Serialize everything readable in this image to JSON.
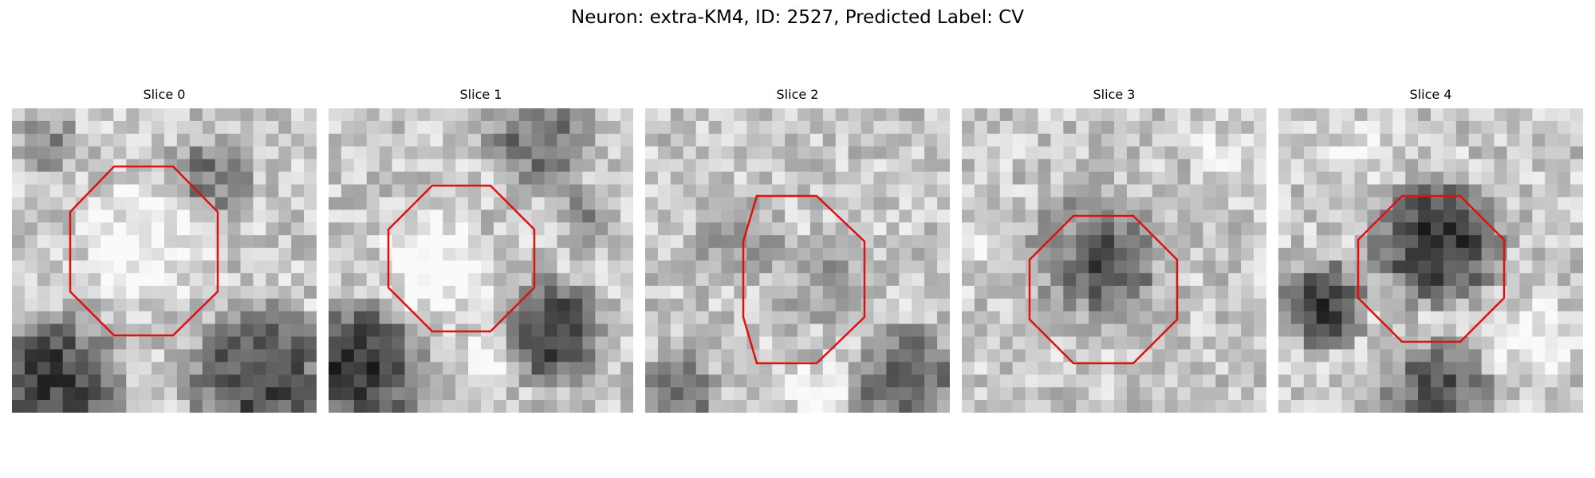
{
  "figure": {
    "title": "Neuron: extra-KM4, ID: 2527, Predicted Label: CV"
  },
  "panels": [
    {
      "title": "Slice 0"
    },
    {
      "title": "Slice 1"
    },
    {
      "title": "Slice 2"
    },
    {
      "title": "Slice 3"
    },
    {
      "title": "Slice 4"
    }
  ],
  "colors": {
    "outline": "#e01010",
    "background": "#ffffff"
  }
}
